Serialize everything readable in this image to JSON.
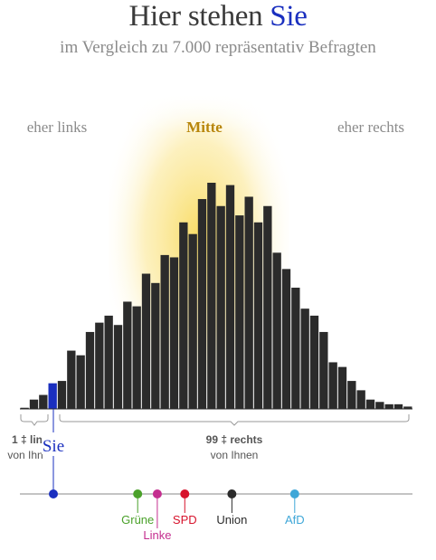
{
  "header": {
    "title_prefix": "Hier stehen ",
    "title_you": "Sie",
    "subtitle": "im Vergleich zu 7.000 repräsentativ Befragten"
  },
  "labels": {
    "left": "eher links",
    "center": "Mitte",
    "right": "eher rechts",
    "you_marker": "Sie",
    "left_share_line1": "1 ‡ lin",
    "left_share_line2": "von Ihn",
    "right_share_line1": "99 ‡ rechts",
    "right_share_line2": "von Ihnen"
  },
  "colors": {
    "bar": "#2b2b2b",
    "you": "#1a2fbf",
    "glow": "#f7d64a",
    "center_label": "#b8860b"
  },
  "chart_data": {
    "type": "bar",
    "title": "Hier stehen Sie",
    "subtitle": "im Vergleich zu 7.000 repräsentativ Befragten",
    "xlabel": "",
    "ylabel": "",
    "highlight_index": 3,
    "values": [
      0.5,
      4,
      6,
      11,
      12,
      25,
      23,
      33,
      37,
      40,
      36,
      46,
      44,
      58,
      54,
      66,
      65,
      80,
      75,
      90,
      97,
      87,
      96,
      83,
      91,
      80,
      87,
      67,
      60,
      52,
      43,
      40,
      33,
      20,
      18,
      12,
      8,
      4,
      3,
      2,
      2,
      1
    ],
    "parties": [
      {
        "name": "Grüne",
        "position": 0.3,
        "color": "#4aa12a"
      },
      {
        "name": "Linke",
        "position": 0.35,
        "color": "#c42e8f"
      },
      {
        "name": "SPD",
        "position": 0.42,
        "color": "#d7132c"
      },
      {
        "name": "Union",
        "position": 0.54,
        "color": "#2b2b2b"
      },
      {
        "name": "AfD",
        "position": 0.7,
        "color": "#3fa7d8"
      }
    ],
    "you_position": 0.08,
    "share_left_percent": 1,
    "share_right_percent": 99
  }
}
